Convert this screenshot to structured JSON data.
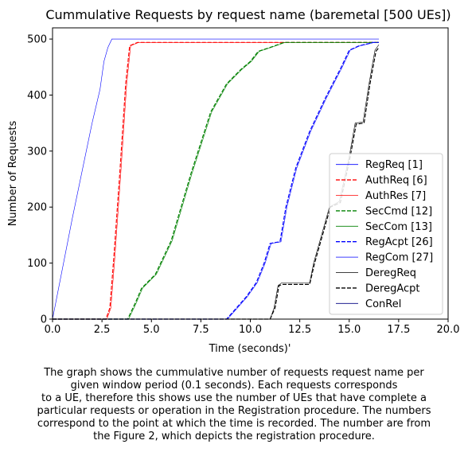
{
  "chart_data": {
    "type": "line",
    "title": "Cummulative Requests by request name (baremetal [500 UEs])",
    "xlabel": "Time (seconds)'",
    "ylabel": "Number of Requests",
    "xlim": [
      0,
      20
    ],
    "ylim": [
      0,
      520
    ],
    "xticks": [
      "0.0",
      "2.5",
      "5.0",
      "7.5",
      "10.0",
      "12.5",
      "15.0",
      "17.5",
      "20.0"
    ],
    "yticks": [
      "0",
      "100",
      "200",
      "300",
      "400",
      "500"
    ],
    "grid": false,
    "legend_position": "lower-right",
    "series": [
      {
        "name": "RegReq [1]",
        "color": "#0000ff",
        "dash": "solid",
        "width": 0.6,
        "points": [
          [
            0,
            0
          ],
          [
            0.5,
            90
          ],
          [
            1,
            180
          ],
          [
            1.5,
            265
          ],
          [
            2,
            350
          ],
          [
            2.4,
            410
          ],
          [
            2.6,
            460
          ],
          [
            2.8,
            485
          ],
          [
            3,
            500
          ],
          [
            16.5,
            500
          ]
        ]
      },
      {
        "name": "AuthReq [6]",
        "color": "#ff0000",
        "dash": "dashed",
        "width": 1.2,
        "points": [
          [
            0,
            0
          ],
          [
            2.7,
            0
          ],
          [
            2.9,
            20
          ],
          [
            3.1,
            110
          ],
          [
            3.4,
            260
          ],
          [
            3.7,
            420
          ],
          [
            3.9,
            488
          ],
          [
            4.3,
            494
          ],
          [
            16.5,
            494
          ]
        ]
      },
      {
        "name": "AuthRes [7]",
        "color": "#ff0000",
        "dash": "solid",
        "width": 0.6,
        "points": [
          [
            0,
            0
          ],
          [
            2.75,
            0
          ],
          [
            2.95,
            20
          ],
          [
            3.15,
            110
          ],
          [
            3.45,
            260
          ],
          [
            3.75,
            420
          ],
          [
            3.95,
            488
          ],
          [
            4.35,
            494
          ],
          [
            16.5,
            494
          ]
        ]
      },
      {
        "name": "SecCmd [12]",
        "color": "#008000",
        "dash": "dashed",
        "width": 1.2,
        "points": [
          [
            0,
            0
          ],
          [
            3.8,
            0
          ],
          [
            4.2,
            30
          ],
          [
            4.5,
            55
          ],
          [
            5.2,
            80
          ],
          [
            6,
            140
          ],
          [
            7,
            260
          ],
          [
            8,
            370
          ],
          [
            8.8,
            420
          ],
          [
            9.5,
            445
          ],
          [
            10,
            460
          ],
          [
            10.4,
            478
          ],
          [
            11,
            485
          ],
          [
            11.4,
            490
          ],
          [
            11.7,
            494
          ],
          [
            16.5,
            494
          ]
        ]
      },
      {
        "name": "SecCom [13]",
        "color": "#008000",
        "dash": "solid",
        "width": 0.6,
        "points": [
          [
            0,
            0
          ],
          [
            3.85,
            0
          ],
          [
            4.25,
            30
          ],
          [
            4.55,
            55
          ],
          [
            5.25,
            80
          ],
          [
            6.05,
            140
          ],
          [
            7.05,
            260
          ],
          [
            8.05,
            370
          ],
          [
            8.85,
            420
          ],
          [
            9.55,
            445
          ],
          [
            10.05,
            460
          ],
          [
            10.45,
            478
          ],
          [
            11.05,
            485
          ],
          [
            11.45,
            490
          ],
          [
            11.75,
            494
          ],
          [
            16.5,
            494
          ]
        ]
      },
      {
        "name": "RegAcpt [26]",
        "color": "#0000ff",
        "dash": "dashed",
        "width": 1.2,
        "points": [
          [
            0,
            0
          ],
          [
            8.8,
            0
          ],
          [
            9.3,
            20
          ],
          [
            9.8,
            40
          ],
          [
            10.3,
            65
          ],
          [
            10.7,
            100
          ],
          [
            11,
            135
          ],
          [
            11.3,
            137
          ],
          [
            11.5,
            138
          ],
          [
            11.8,
            200
          ],
          [
            12.3,
            270
          ],
          [
            13,
            335
          ],
          [
            13.8,
            395
          ],
          [
            14.6,
            450
          ],
          [
            15,
            480
          ],
          [
            15.5,
            488
          ],
          [
            16,
            492
          ],
          [
            16.2,
            494
          ],
          [
            16.5,
            494
          ]
        ]
      },
      {
        "name": "RegCom [27]",
        "color": "#0000ff",
        "dash": "solid",
        "width": 0.6,
        "points": [
          [
            0,
            0
          ],
          [
            8.85,
            0
          ],
          [
            9.35,
            20
          ],
          [
            9.85,
            40
          ],
          [
            10.35,
            65
          ],
          [
            10.75,
            100
          ],
          [
            11.05,
            135
          ],
          [
            11.35,
            137
          ],
          [
            11.55,
            138
          ],
          [
            11.85,
            200
          ],
          [
            12.35,
            270
          ],
          [
            13.05,
            335
          ],
          [
            13.85,
            395
          ],
          [
            14.65,
            450
          ],
          [
            15.05,
            480
          ],
          [
            15.55,
            488
          ],
          [
            16.05,
            492
          ],
          [
            16.25,
            494
          ],
          [
            16.5,
            494
          ]
        ]
      },
      {
        "name": "DeregReq",
        "color": "#000000",
        "dash": "solid",
        "width": 0.6,
        "points": [
          [
            0,
            0
          ],
          [
            11,
            0
          ],
          [
            11.2,
            20
          ],
          [
            11.4,
            60
          ],
          [
            11.6,
            65
          ],
          [
            13,
            65
          ],
          [
            13.2,
            100
          ],
          [
            13.6,
            150
          ],
          [
            14,
            200
          ],
          [
            14.5,
            210
          ],
          [
            15,
            290
          ],
          [
            15.3,
            350
          ],
          [
            15.7,
            352
          ],
          [
            16,
            420
          ],
          [
            16.3,
            480
          ],
          [
            16.5,
            490
          ]
        ]
      },
      {
        "name": "DeregAcpt",
        "color": "#000000",
        "dash": "dashed",
        "width": 1.2,
        "points": [
          [
            0,
            0
          ],
          [
            11,
            0
          ],
          [
            11.25,
            20
          ],
          [
            11.45,
            60
          ],
          [
            11.65,
            62
          ],
          [
            13,
            62
          ],
          [
            13.25,
            100
          ],
          [
            13.65,
            150
          ],
          [
            14.05,
            200
          ],
          [
            14.55,
            208
          ],
          [
            15.05,
            290
          ],
          [
            15.35,
            348
          ],
          [
            15.75,
            350
          ],
          [
            16.05,
            420
          ],
          [
            16.35,
            478
          ],
          [
            16.5,
            485
          ]
        ]
      },
      {
        "name": "ConRel",
        "color": "#000080",
        "dash": "solid",
        "width": 0.6,
        "points": [
          [
            0,
            0
          ],
          [
            16.5,
            0
          ]
        ]
      }
    ]
  },
  "caption": [
    "The graph shows the cummulative number of requests request name per",
    "given window period (0.1 seconds). Each requests corresponds",
    "to a UE, therefore this shows use the number of UEs that have complete a",
    "particular requests or operation in the Registration procedure. The numbers",
    "correspond to the point at which the time is recorded. The number are from",
    "the Figure 2, which depicts the registration procedure."
  ]
}
